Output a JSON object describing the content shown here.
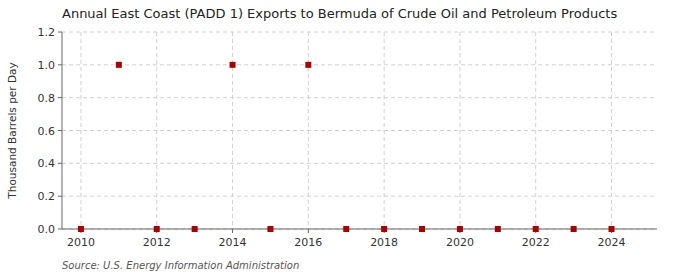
{
  "chart_data": {
    "type": "scatter",
    "title": "Annual East Coast (PADD 1) Exports to Bermuda of Crude Oil and Petroleum Products",
    "ylabel": "Thousand Barrels per Day",
    "source": "Source: U.S. Energy Information Administration",
    "x": [
      2010,
      2011,
      2012,
      2013,
      2014,
      2015,
      2016,
      2017,
      2018,
      2019,
      2020,
      2021,
      2022,
      2023,
      2024
    ],
    "values": [
      0.0,
      1.0,
      0.0,
      0.0,
      1.0,
      0.0,
      1.0,
      0.0,
      0.0,
      0.0,
      0.0,
      0.0,
      0.0,
      0.0,
      0.0
    ],
    "color": "#aa0000",
    "marker": "square",
    "xlim": [
      2009.5,
      2025.2
    ],
    "xticks": [
      2010,
      2012,
      2014,
      2016,
      2018,
      2020,
      2022,
      2024
    ],
    "ylim": [
      0.0,
      1.2
    ],
    "yticks": [
      {
        "value": 0.0,
        "label": "0.0"
      },
      0.2,
      0.4,
      0.6,
      0.8,
      {
        "value": 1.0,
        "label": "1.0"
      },
      1.2
    ],
    "grid": true
  }
}
